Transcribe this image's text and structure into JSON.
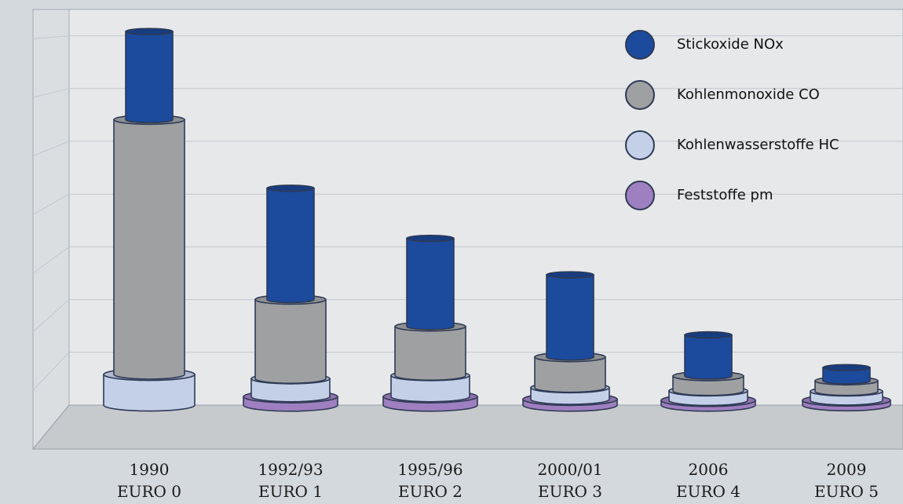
{
  "chart_data": {
    "type": "bar",
    "style": "stacked-3d-cylinder",
    "categories": [
      {
        "year": "1990",
        "norm": "EURO 0"
      },
      {
        "year": "1992/93",
        "norm": "EURO 1"
      },
      {
        "year": "1995/96",
        "norm": "EURO 2"
      },
      {
        "year": "2000/01",
        "norm": "EURO 3"
      },
      {
        "year": "2006",
        "norm": "EURO 4"
      },
      {
        "year": "2009",
        "norm": "EURO 5"
      }
    ],
    "series": [
      {
        "key": "pm",
        "name": "Feststoffe pm",
        "color": "#9e7fbf",
        "values": [
          0,
          0.16,
          0.16,
          0.11,
          0.09,
          0.09
        ]
      },
      {
        "key": "hc",
        "name": "Kohlenwasserstoffe HC",
        "color": "#c4cfe8",
        "values": [
          0.58,
          0.34,
          0.4,
          0.22,
          0.18,
          0.17
        ]
      },
      {
        "key": "co",
        "name": "Kohlenmonoxide CO",
        "color": "#9ea0a2",
        "values": [
          4.83,
          1.5,
          0.93,
          0.58,
          0.28,
          0.2
        ]
      },
      {
        "key": "nox",
        "name": "Stickoxide NOx",
        "color": "#1c4a9c",
        "values": [
          1.67,
          2.11,
          1.67,
          1.56,
          0.78,
          0.25
        ]
      }
    ],
    "legend_order": [
      "nox",
      "co",
      "hc",
      "pm"
    ],
    "ylim": [
      0,
      7.5
    ],
    "grid": true,
    "legend_position": "top-right",
    "title": "",
    "xlabel": "",
    "ylabel": ""
  }
}
